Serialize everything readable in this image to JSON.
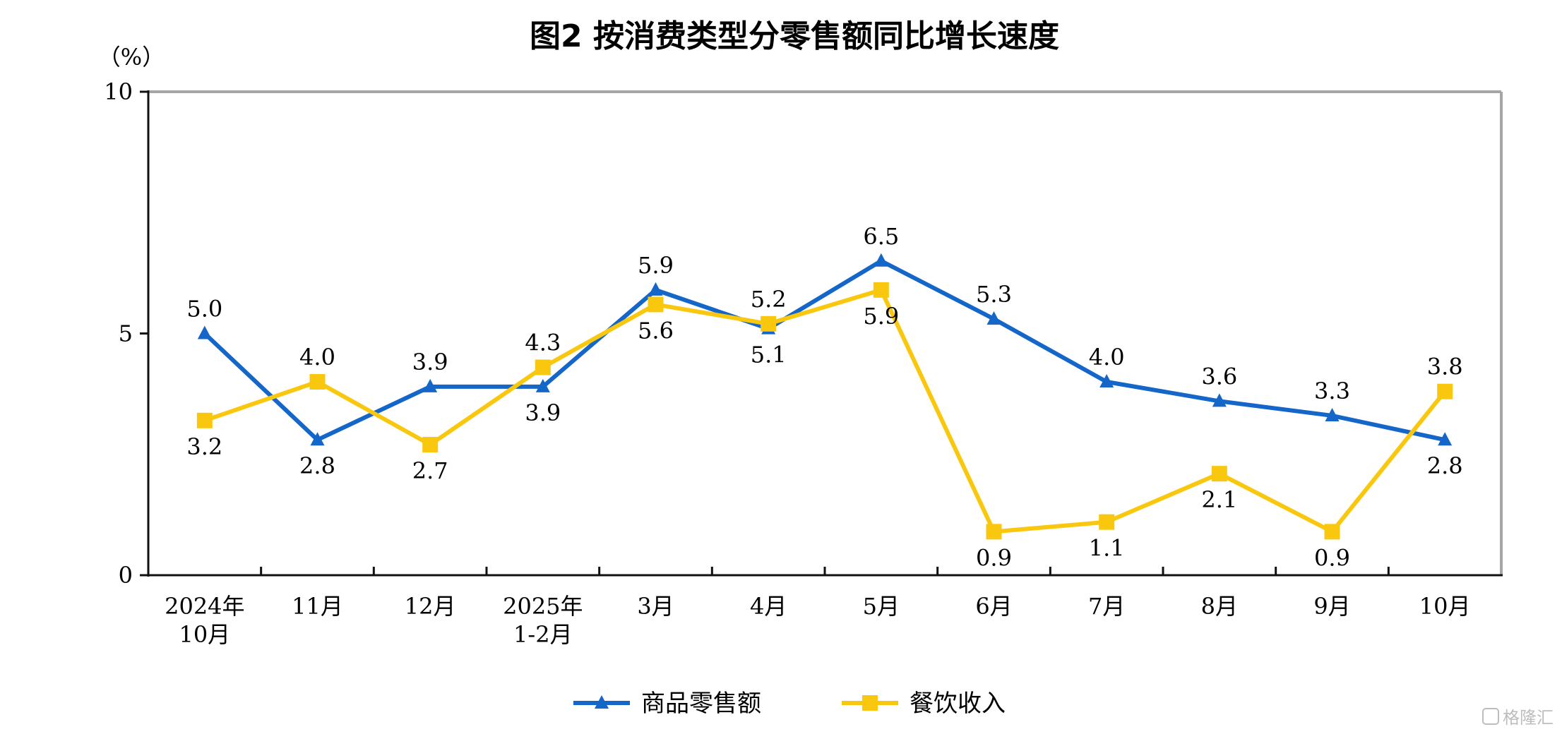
{
  "chart_data": {
    "type": "line",
    "title": "图2  按消费类型分零售额同比增长速度",
    "unit": "（%）",
    "ylim": [
      0,
      10
    ],
    "yticks": [
      "0",
      "5",
      "10"
    ],
    "categories": [
      [
        "2024年",
        "10月"
      ],
      [
        "11月"
      ],
      [
        "12月"
      ],
      [
        "2025年",
        "1-2月"
      ],
      [
        "3月"
      ],
      [
        "4月"
      ],
      [
        "5月"
      ],
      [
        "6月"
      ],
      [
        "7月"
      ],
      [
        "8月"
      ],
      [
        "9月"
      ],
      [
        "10月"
      ]
    ],
    "series": [
      {
        "name": "商品零售额",
        "color": "#1466C8",
        "marker": "triangle",
        "values": [
          5.0,
          2.8,
          3.9,
          3.9,
          5.9,
          5.1,
          6.5,
          5.3,
          4.0,
          3.6,
          3.3,
          2.8
        ],
        "labels": [
          "5.0",
          "2.8",
          "3.9",
          "3.9",
          "5.9",
          "5.1",
          "6.5",
          "5.3",
          "4.0",
          "3.6",
          "3.3",
          "2.8"
        ],
        "label_pos": [
          "above",
          "below",
          "above",
          "below",
          "above",
          "below",
          "above",
          "above",
          "above",
          "above",
          "above",
          "below"
        ]
      },
      {
        "name": "餐饮收入",
        "color": "#F9C80E",
        "marker": "square",
        "values": [
          3.2,
          4.0,
          2.7,
          4.3,
          5.6,
          5.2,
          5.9,
          0.9,
          1.1,
          2.1,
          0.9,
          3.8
        ],
        "labels": [
          "3.2",
          "4.0",
          "2.7",
          "4.3",
          "5.6",
          "5.2",
          "5.9",
          "0.9",
          "1.1",
          "2.1",
          "0.9",
          "3.8"
        ],
        "label_pos": [
          "below",
          "above",
          "below",
          "above",
          "below",
          "above",
          "below",
          "below",
          "below",
          "below",
          "below",
          "above"
        ]
      }
    ],
    "grid": false,
    "legend_position": "bottom-center"
  },
  "watermark": "格隆汇"
}
